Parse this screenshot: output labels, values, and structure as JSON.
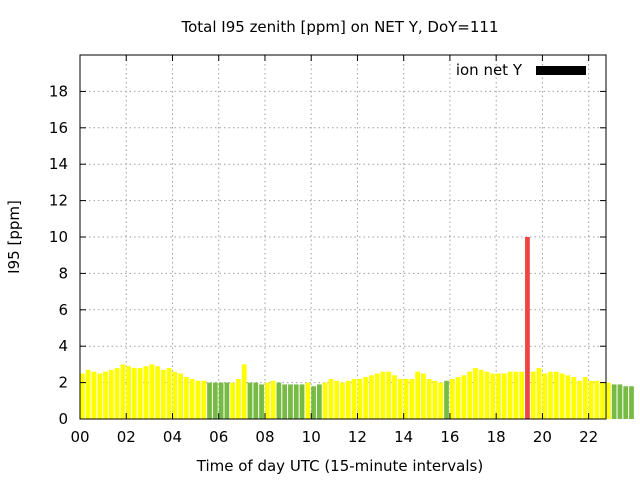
{
  "chart_data": {
    "type": "bar",
    "title": "Total I95 zenith [ppm] on NET Y, DoY=111",
    "xlabel": "Time of day UTC (15-minute intervals)",
    "ylabel": "I95 [ppm]",
    "ylim": [
      0,
      20
    ],
    "yticks": [
      0,
      2,
      4,
      6,
      8,
      10,
      12,
      14,
      16,
      18
    ],
    "xlim": [
      0,
      22.75
    ],
    "xticks": [
      0,
      2,
      4,
      6,
      8,
      10,
      12,
      14,
      16,
      18,
      20,
      22
    ],
    "xtick_labels": [
      "00",
      "02",
      "04",
      "06",
      "08",
      "10",
      "12",
      "14",
      "16",
      "18",
      "20",
      "22"
    ],
    "interval_hours": 0.25,
    "grid": true,
    "legend_position": "top-right",
    "legend": [
      {
        "label": "ion net Y",
        "color": "#000000"
      }
    ],
    "series": [
      {
        "name": "ion net Y",
        "values": [
          2.5,
          2.7,
          2.6,
          2.5,
          2.6,
          2.7,
          2.8,
          3.0,
          2.9,
          2.8,
          2.8,
          2.9,
          3.0,
          2.9,
          2.7,
          2.8,
          2.6,
          2.5,
          2.3,
          2.2,
          2.1,
          2.1,
          2.0,
          2.0,
          2.0,
          2.0,
          2.0,
          2.2,
          3.0,
          2.0,
          2.0,
          1.9,
          2.0,
          2.1,
          2.0,
          1.9,
          1.9,
          1.9,
          1.9,
          2.0,
          1.8,
          1.9,
          2.0,
          2.2,
          2.1,
          2.0,
          2.1,
          2.2,
          2.2,
          2.3,
          2.4,
          2.5,
          2.6,
          2.6,
          2.4,
          2.2,
          2.2,
          2.2,
          2.6,
          2.5,
          2.2,
          2.1,
          2.0,
          2.1,
          2.2,
          2.3,
          2.4,
          2.6,
          2.8,
          2.7,
          2.6,
          2.5,
          2.5,
          2.5,
          2.6,
          2.6,
          2.6,
          10.0,
          2.6,
          2.8,
          2.5,
          2.6,
          2.6,
          2.5,
          2.4,
          2.3,
          2.1,
          2.3,
          2.1,
          2.1,
          2.0,
          2.0,
          1.9,
          1.9,
          1.8,
          1.8
        ]
      }
    ],
    "bar_status": [
      "y",
      "y",
      "y",
      "y",
      "y",
      "y",
      "y",
      "y",
      "y",
      "y",
      "y",
      "y",
      "y",
      "y",
      "y",
      "y",
      "y",
      "y",
      "y",
      "y",
      "y",
      "y",
      "g",
      "g",
      "g",
      "g",
      "y",
      "y",
      "y",
      "g",
      "g",
      "g",
      "y",
      "y",
      "g",
      "g",
      "g",
      "g",
      "g",
      "y",
      "g",
      "g",
      "y",
      "y",
      "y",
      "y",
      "y",
      "y",
      "y",
      "y",
      "y",
      "y",
      "y",
      "y",
      "y",
      "y",
      "y",
      "y",
      "y",
      "y",
      "y",
      "y",
      "y",
      "g",
      "y",
      "y",
      "y",
      "y",
      "y",
      "y",
      "y",
      "y",
      "y",
      "y",
      "y",
      "y",
      "y",
      "r",
      "y",
      "y",
      "y",
      "y",
      "y",
      "y",
      "y",
      "y",
      "y",
      "y",
      "y",
      "y",
      "y",
      "y",
      "g",
      "g",
      "g",
      "g"
    ],
    "status_colors": {
      "y": "#ffff00",
      "g": "#77bb44",
      "r": "#ee4444"
    }
  }
}
